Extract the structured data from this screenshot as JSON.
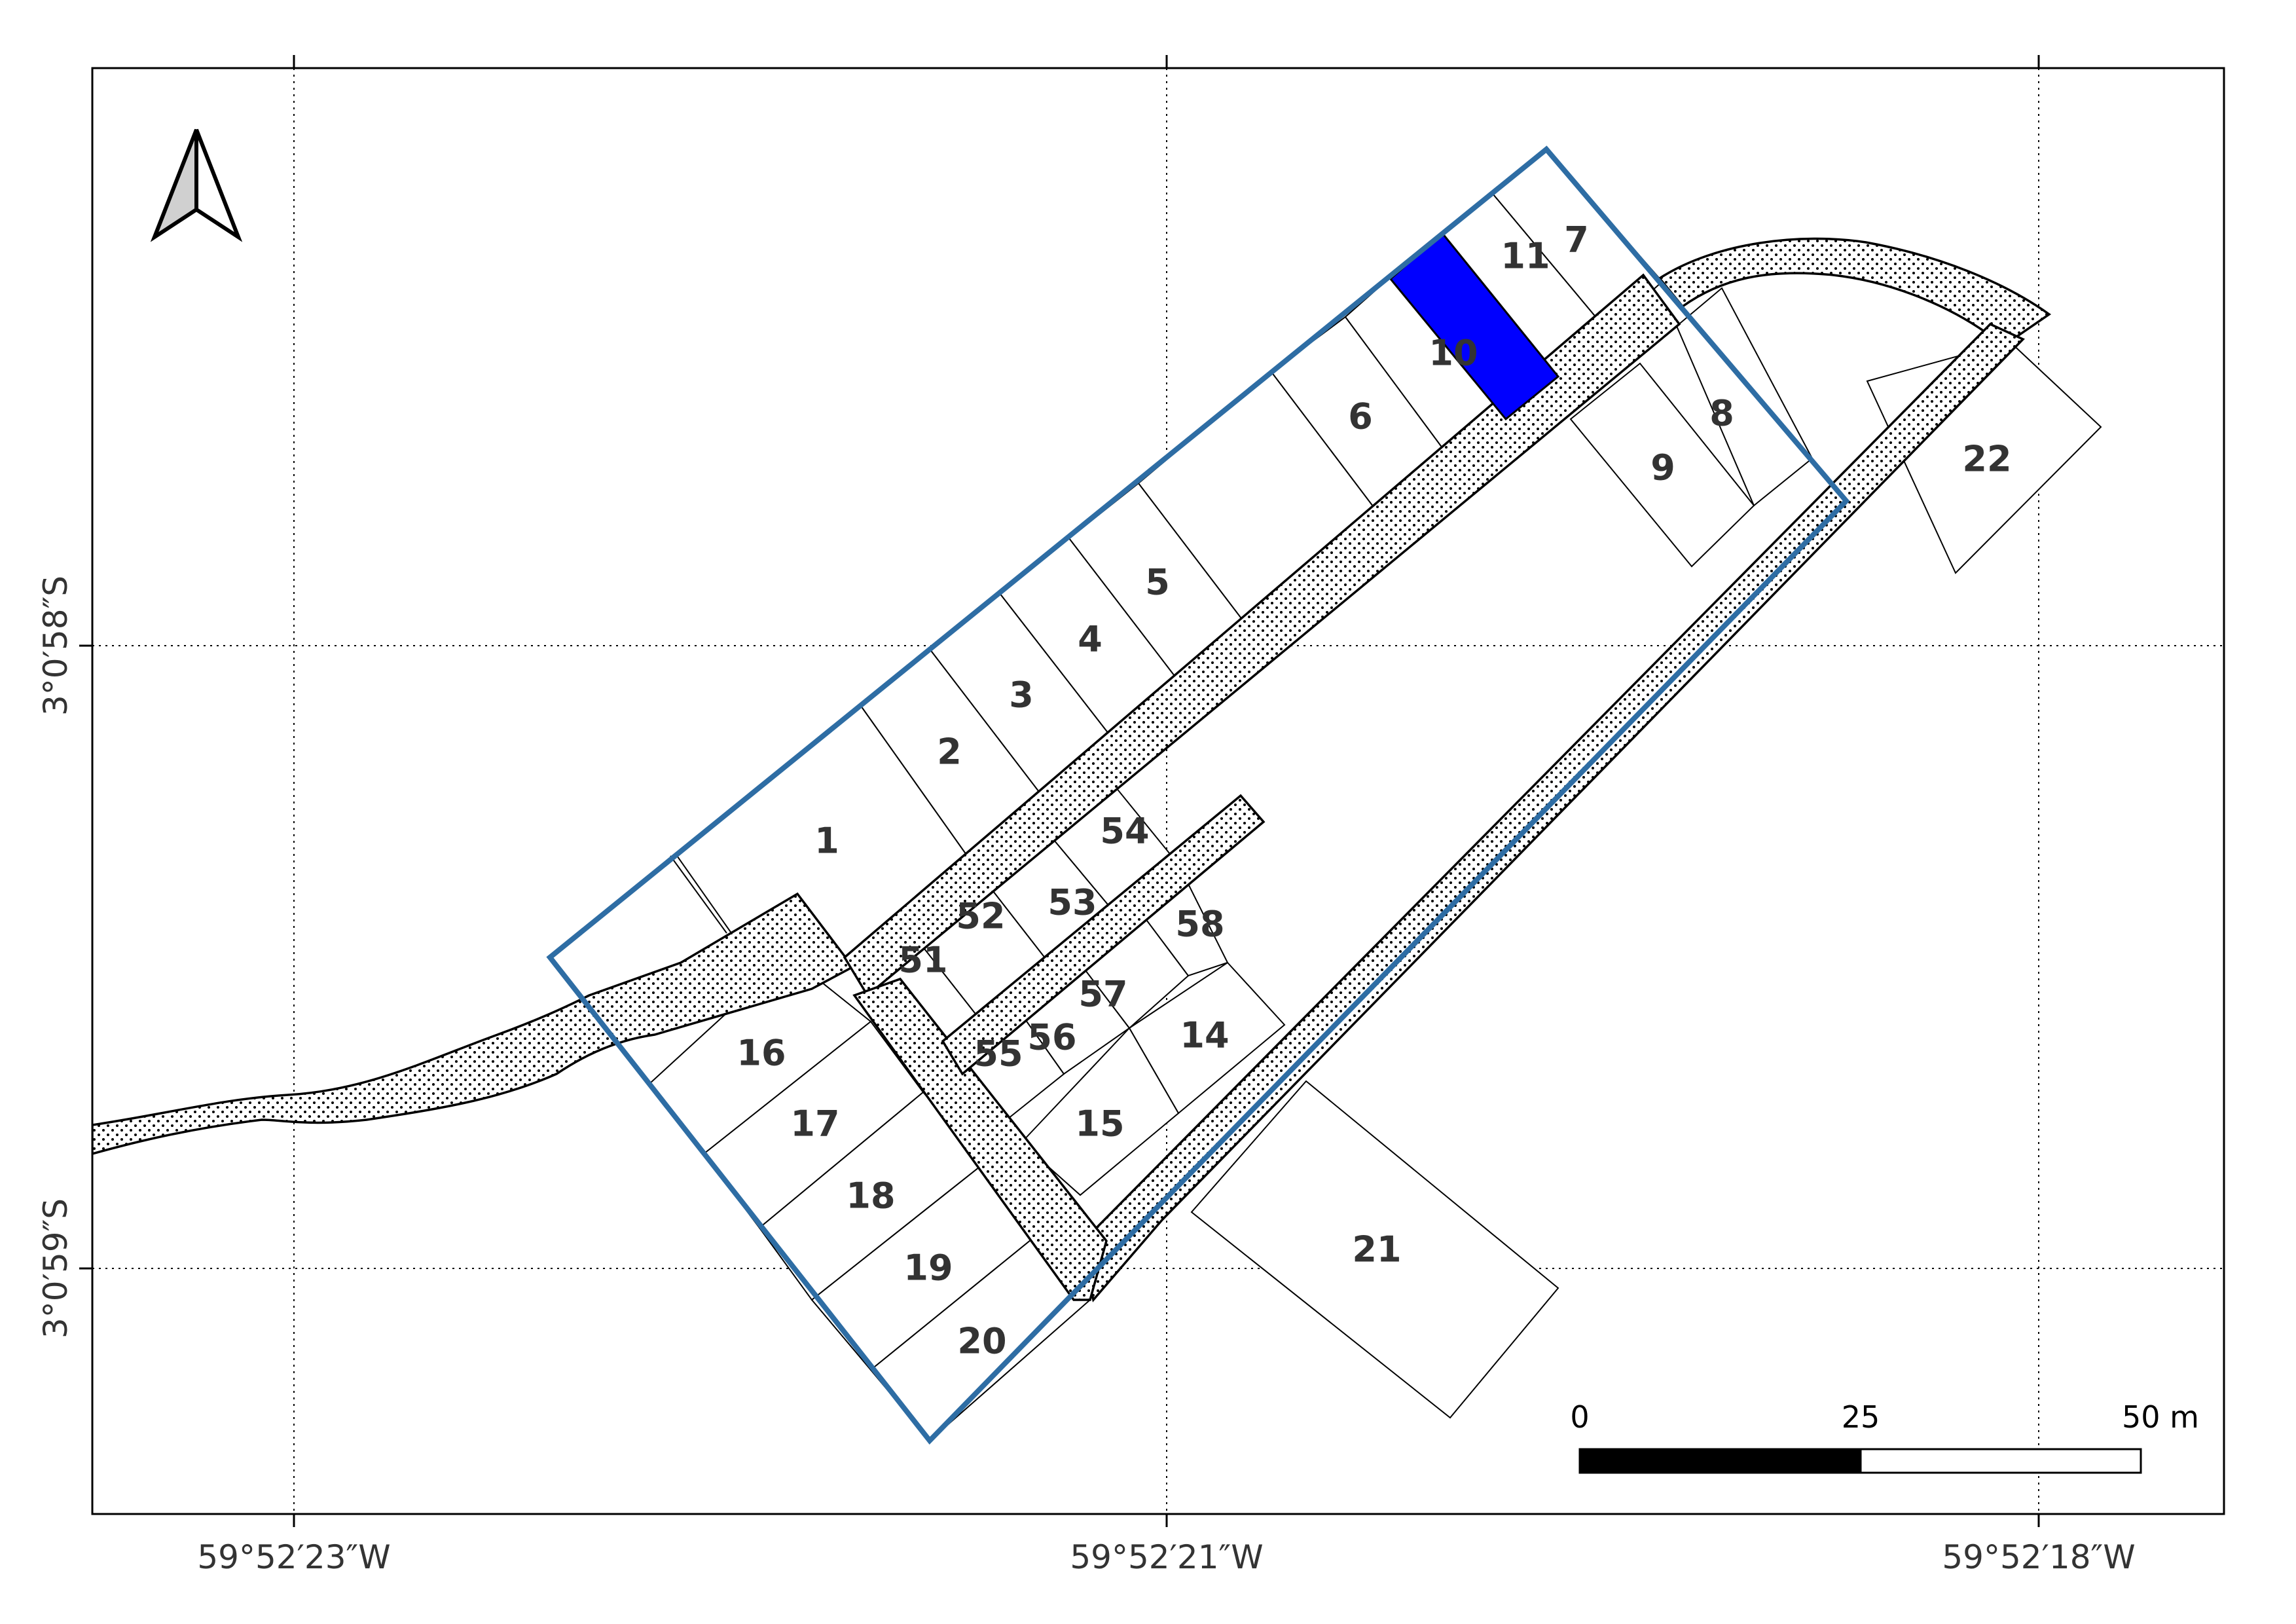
{
  "map": {
    "north_arrow": "north-arrow-icon",
    "colors": {
      "selected_lot": "#0000ff",
      "boundary": "#2e6da4",
      "lot_stroke": "#000000",
      "label": "#333333"
    },
    "longitude_labels": [
      "59°52′23″W",
      "59°52′21″W",
      "59°52′18″W"
    ],
    "latitude_labels": [
      "3°0′58″S",
      "3°0′59″S"
    ],
    "scale_bar": {
      "ticks": [
        "0",
        "25",
        "50 m"
      ]
    },
    "selected_lot": "10",
    "lots": [
      {
        "id": "1",
        "label": "1"
      },
      {
        "id": "2",
        "label": "2"
      },
      {
        "id": "3",
        "label": "3"
      },
      {
        "id": "4",
        "label": "4"
      },
      {
        "id": "5",
        "label": "5"
      },
      {
        "id": "6",
        "label": "6"
      },
      {
        "id": "7",
        "label": "7"
      },
      {
        "id": "8",
        "label": "8"
      },
      {
        "id": "9",
        "label": "9"
      },
      {
        "id": "10",
        "label": "10"
      },
      {
        "id": "11",
        "label": "11"
      },
      {
        "id": "14",
        "label": "14"
      },
      {
        "id": "15",
        "label": "15"
      },
      {
        "id": "16",
        "label": "16"
      },
      {
        "id": "17",
        "label": "17"
      },
      {
        "id": "18",
        "label": "18"
      },
      {
        "id": "19",
        "label": "19"
      },
      {
        "id": "20",
        "label": "20"
      },
      {
        "id": "21",
        "label": "21"
      },
      {
        "id": "22",
        "label": "22"
      },
      {
        "id": "51",
        "label": "51"
      },
      {
        "id": "52",
        "label": "52"
      },
      {
        "id": "53",
        "label": "53"
      },
      {
        "id": "54",
        "label": "54"
      },
      {
        "id": "55",
        "label": "55"
      },
      {
        "id": "56",
        "label": "56"
      },
      {
        "id": "57",
        "label": "57"
      },
      {
        "id": "58",
        "label": "58"
      }
    ]
  }
}
